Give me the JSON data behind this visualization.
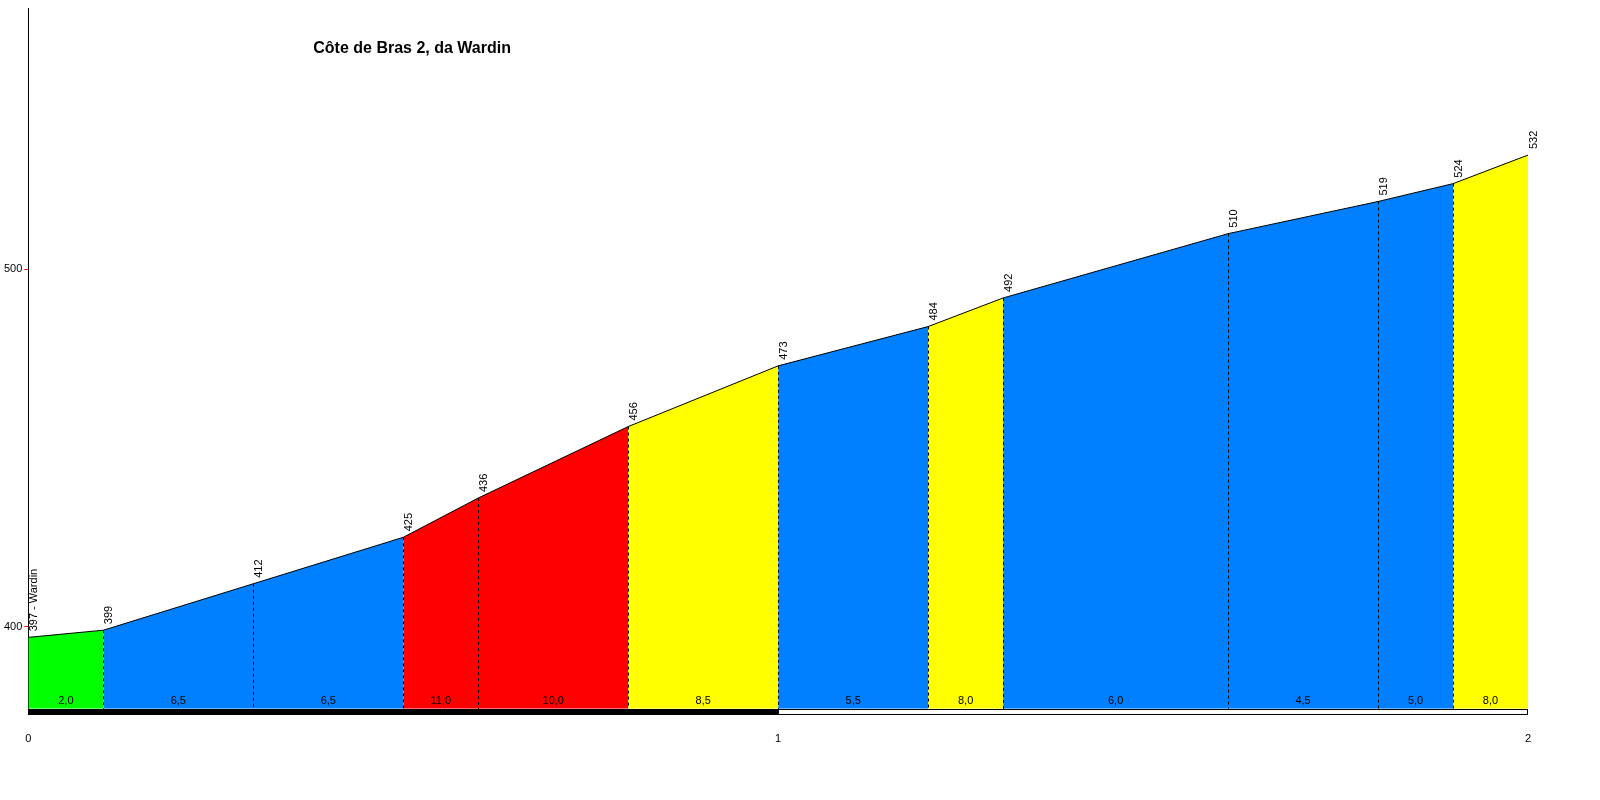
{
  "chart_data": {
    "type": "area",
    "title": "Côte de Bras 2, da Wardin",
    "series": [
      {
        "color": "#00ff00",
        "x": [
          0,
          0.1
        ],
        "values": [
          397,
          399
        ],
        "value_labels": [
          "397 - Wardin",
          "399"
        ]
      },
      {
        "color": "#0080ff",
        "x": [
          0.1,
          0.3,
          0.5
        ],
        "values": [
          399,
          412,
          425
        ],
        "value_labels": [
          null,
          "412",
          "425"
        ]
      },
      {
        "color": "#ff0000",
        "x": [
          0.5,
          0.6,
          0.8
        ],
        "values": [
          425,
          436,
          456
        ],
        "value_labels": [
          null,
          "436",
          "456"
        ]
      },
      {
        "color": "#ffff00",
        "x": [
          0.8,
          1.0
        ],
        "values": [
          456,
          473
        ],
        "value_labels": [
          null,
          "473"
        ]
      },
      {
        "color": "#0080ff",
        "x": [
          1.0,
          1.2
        ],
        "values": [
          473,
          484
        ],
        "value_labels": [
          null,
          "484"
        ]
      },
      {
        "color": "#ffff00",
        "x": [
          1.2,
          1.3
        ],
        "values": [
          484,
          492
        ],
        "value_labels": [
          null,
          "492"
        ]
      },
      {
        "color": "#0080ff",
        "x": [
          1.3,
          1.6,
          1.8,
          1.9
        ],
        "values": [
          492,
          510,
          519,
          524
        ],
        "value_labels": [
          null,
          "510",
          "519",
          "524"
        ]
      },
      {
        "color": "#ffff00",
        "x": [
          1.9,
          2.0
        ],
        "values": [
          524,
          532
        ],
        "value_labels": [
          null,
          "532"
        ]
      }
    ],
    "annotations": [
      "2,0",
      "6,5",
      "6,5",
      "11,0",
      "10,0",
      "8,5",
      "5,5",
      "8,0",
      "6,0",
      "4,5",
      "5,0",
      "8,0"
    ],
    "xlim": [
      0,
      2
    ],
    "xticks": [
      0,
      1,
      2
    ],
    "ylim": [
      377,
      573
    ],
    "yticks": [
      400,
      500
    ],
    "grid": false
  }
}
